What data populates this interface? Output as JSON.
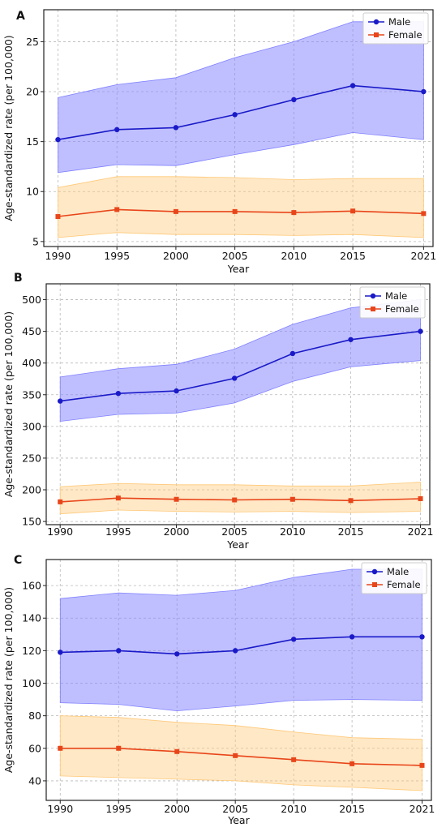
{
  "chart_data": [
    {
      "panel": "A",
      "type": "line",
      "xlabel": "Year",
      "ylabel": "Age-standardized rate (per 100,000)",
      "x": [
        1990,
        1995,
        2000,
        2005,
        2010,
        2015,
        2021
      ],
      "xticks": [
        "1990",
        "1995",
        "2000",
        "2005",
        "2010",
        "2015",
        "2021"
      ],
      "yticks": [
        5,
        10,
        15,
        20,
        25
      ],
      "ylim": [
        4.5,
        28.2
      ],
      "xlim": [
        1988.8,
        2021.8
      ],
      "grid": true,
      "legend": "top-right",
      "series": [
        {
          "name": "Male",
          "color": "#1a1ac8",
          "band_color": "#8080ff",
          "marker": "circle",
          "values": [
            15.2,
            16.2,
            16.4,
            17.7,
            19.2,
            20.6,
            20.0
          ],
          "lower": [
            11.9,
            12.7,
            12.6,
            13.7,
            14.7,
            15.9,
            15.2
          ],
          "upper": [
            19.4,
            20.7,
            21.4,
            23.4,
            25.0,
            27.0,
            27.0
          ]
        },
        {
          "name": "Female",
          "color": "#e8451a",
          "band_color": "#ffc978",
          "marker": "square",
          "values": [
            7.5,
            8.2,
            8.0,
            8.0,
            7.9,
            8.05,
            7.8
          ],
          "lower": [
            5.4,
            5.9,
            5.7,
            5.7,
            5.6,
            5.7,
            5.4
          ],
          "upper": [
            10.4,
            11.5,
            11.5,
            11.4,
            11.2,
            11.3,
            11.3
          ]
        }
      ]
    },
    {
      "panel": "B",
      "type": "line",
      "xlabel": "Year",
      "ylabel": "Age-standardized rate (per 100,000)",
      "x": [
        1990,
        1995,
        2000,
        2005,
        2010,
        2015,
        2021
      ],
      "xticks": [
        "1990",
        "1995",
        "2000",
        "2005",
        "2010",
        "2015",
        "2021"
      ],
      "yticks": [
        150,
        200,
        250,
        300,
        350,
        400,
        450,
        500
      ],
      "ylim": [
        145,
        525
      ],
      "xlim": [
        1988.8,
        2021.8
      ],
      "grid": true,
      "legend": "top-right",
      "series": [
        {
          "name": "Male",
          "color": "#1a1ac8",
          "band_color": "#8080ff",
          "marker": "circle",
          "values": [
            340,
            352,
            356,
            376,
            415,
            437,
            450
          ],
          "lower": [
            308,
            319,
            321,
            337,
            371,
            394,
            404
          ],
          "upper": [
            378,
            391,
            398,
            422,
            461,
            487,
            500
          ]
        },
        {
          "name": "Female",
          "color": "#e8451a",
          "band_color": "#ffc978",
          "marker": "square",
          "values": [
            181,
            187,
            185,
            184,
            185,
            183,
            186
          ],
          "lower": [
            162,
            168,
            166,
            165,
            166,
            164,
            166
          ],
          "upper": [
            205,
            210,
            208,
            208,
            206,
            206,
            212
          ]
        }
      ]
    },
    {
      "panel": "C",
      "type": "line",
      "xlabel": "Year",
      "ylabel": "Age-standardized rate (per 100,000)",
      "x": [
        1990,
        1995,
        2000,
        2005,
        2010,
        2015,
        2021
      ],
      "xticks": [
        "1990",
        "1995",
        "2000",
        "2005",
        "2010",
        "2015",
        "2021"
      ],
      "yticks": [
        40,
        60,
        80,
        100,
        120,
        140,
        160
      ],
      "ylim": [
        28,
        176
      ],
      "xlim": [
        1988.8,
        2021.8
      ],
      "grid": true,
      "legend": "top-right",
      "series": [
        {
          "name": "Male",
          "color": "#1a1ac8",
          "band_color": "#8080ff",
          "marker": "circle",
          "values": [
            119,
            120,
            118,
            120,
            127,
            128.5,
            128.5
          ],
          "lower": [
            88,
            87,
            83,
            86,
            89.5,
            90,
            89.5
          ],
          "upper": [
            152,
            155.5,
            154,
            157,
            165,
            170,
            170
          ]
        },
        {
          "name": "Female",
          "color": "#e8451a",
          "band_color": "#ffc978",
          "marker": "square",
          "values": [
            60,
            60,
            58,
            55.5,
            53,
            50.5,
            49.5
          ],
          "lower": [
            43,
            42,
            41,
            40,
            37.5,
            36,
            34
          ],
          "upper": [
            80,
            79,
            76,
            74,
            70,
            66.5,
            65.5
          ]
        }
      ]
    }
  ]
}
